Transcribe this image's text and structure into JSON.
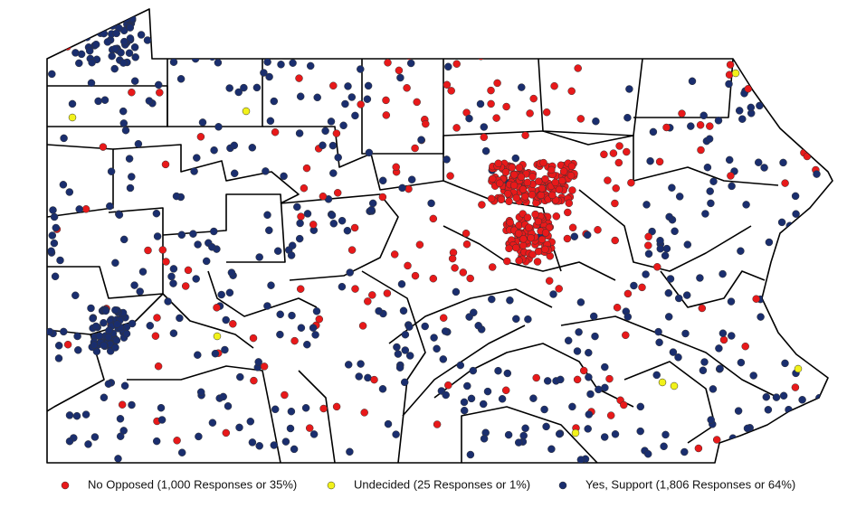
{
  "legend": [
    {
      "label": "No Opposed (1,000 Responses or 35%)",
      "color": "#e8191a"
    },
    {
      "label": "Undecided (25 Responses or 1%)",
      "color": "#f2f21a"
    },
    {
      "label": "Yes, Support (1,806 Responses or 64%)",
      "color": "#1a2e6e"
    }
  ]
}
